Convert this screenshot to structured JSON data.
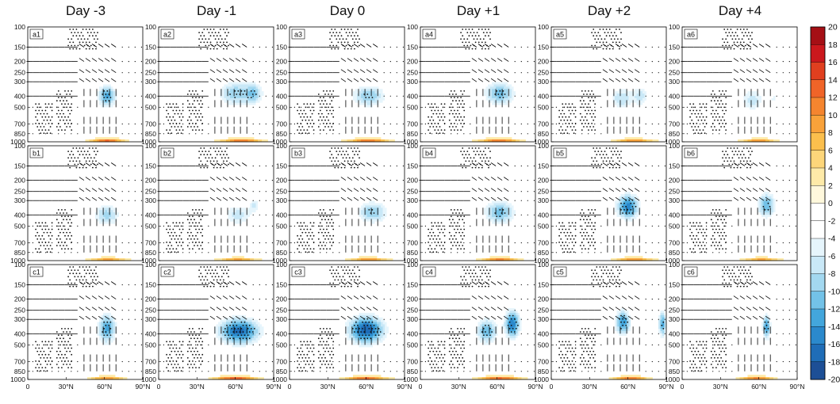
{
  "chart_data": {
    "type": "heatmap",
    "layout": "3 rows x 6 columns of latitude-pressure cross-sections with wind vectors and stippling",
    "column_titles": [
      "Day -3",
      "Day -1",
      "Day 0",
      "Day +1",
      "Day +2",
      "Day +4"
    ],
    "row_keys": [
      "a",
      "b",
      "c"
    ],
    "panel_labels": [
      [
        "a1",
        "a2",
        "a3",
        "a4",
        "a5",
        "a6"
      ],
      [
        "b1",
        "b2",
        "b3",
        "b4",
        "b5",
        "b6"
      ],
      [
        "c1",
        "c2",
        "c3",
        "c4",
        "c5",
        "c6"
      ]
    ],
    "x_axis": {
      "ticks": [
        0,
        30,
        60,
        90
      ],
      "tick_labels": [
        "0",
        "30°N",
        "60°N",
        "90°N"
      ],
      "xlim": [
        0,
        90
      ]
    },
    "y_axis": {
      "ticks": [
        100,
        150,
        200,
        250,
        300,
        400,
        500,
        700,
        850,
        1000
      ],
      "tick_labels": [
        "100",
        "150",
        "200",
        "250",
        "300",
        "400",
        "500",
        "700",
        "850",
        "1000"
      ],
      "ylim": [
        1000,
        100
      ],
      "scale": "log-pressure"
    },
    "colorbar": {
      "levels": [
        20,
        18,
        16,
        14,
        12,
        10,
        8,
        6,
        4,
        2,
        0,
        -2,
        -4,
        -6,
        -8,
        -10,
        -12,
        -14,
        -16,
        -18,
        -20
      ],
      "level_labels": [
        "20",
        "18",
        "16",
        "14",
        "12",
        "10",
        "8",
        "6",
        "4",
        "2",
        "0",
        "-2",
        "-4",
        "-6",
        "-8",
        "-10",
        "-12",
        "-14",
        "-16",
        "-18",
        "-20"
      ],
      "colors": [
        "#a50f15",
        "#cb181d",
        "#e03f1f",
        "#f06428",
        "#f5852f",
        "#f9a23a",
        "#fbbf4d",
        "#fdd67a",
        "#feeaa8",
        "#fff8dc",
        "#ffffff",
        "#ffffff",
        "#e6f5fc",
        "#c9e8f7",
        "#a3d8f0",
        "#73c2e8",
        "#43a6dc",
        "#2b89cc",
        "#1f6db7",
        "#1d4f96",
        "#1a3570"
      ]
    },
    "features": [
      [
        {
          "neg": [
            {
              "lat": 62,
              "p": 400,
              "a": 7,
              "b": 0.22,
              "v": -13
            }
          ],
          "pos": [
            {
              "lat": 62,
              "p": 990,
              "a": 13,
              "b": 0.05,
              "v": 13
            }
          ]
        },
        {
          "neg": [
            {
              "lat": 60,
              "p": 380,
              "a": 13,
              "b": 0.24,
              "v": -10
            },
            {
              "lat": 75,
              "p": 380,
              "a": 7,
              "b": 0.22,
              "v": -8
            }
          ],
          "pos": [
            {
              "lat": 65,
              "p": 990,
              "a": 16,
              "b": 0.05,
              "v": 12
            }
          ]
        },
        {
          "neg": [
            {
              "lat": 62,
              "p": 400,
              "a": 13,
              "b": 0.22,
              "v": -10
            }
          ],
          "pos": [
            {
              "lat": 62,
              "p": 990,
              "a": 16,
              "b": 0.05,
              "v": 12
            }
          ]
        },
        {
          "neg": [
            {
              "lat": 62,
              "p": 380,
              "a": 12,
              "b": 0.24,
              "v": -11
            }
          ],
          "pos": [
            {
              "lat": 62,
              "p": 990,
              "a": 16,
              "b": 0.05,
              "v": 12
            }
          ]
        },
        {
          "neg": [
            {
              "lat": 55,
              "p": 420,
              "a": 9,
              "b": 0.22,
              "v": -8
            },
            {
              "lat": 70,
              "p": 400,
              "a": 6,
              "b": 0.2,
              "v": -7
            }
          ],
          "pos": [
            {
              "lat": 65,
              "p": 990,
              "a": 15,
              "b": 0.05,
              "v": 10
            }
          ]
        },
        {
          "neg": [
            {
              "lat": 55,
              "p": 430,
              "a": 9,
              "b": 0.25,
              "v": -7
            },
            {
              "lat": 72,
              "p": 420,
              "a": 3,
              "b": 0.1,
              "v": -5
            }
          ],
          "pos": [
            {
              "lat": 60,
              "p": 990,
              "a": 13,
              "b": 0.05,
              "v": 10
            }
          ]
        }
      ],
      [
        {
          "neg": [
            {
              "lat": 62,
              "p": 400,
              "a": 10,
              "b": 0.22,
              "v": -9
            }
          ],
          "pos": [
            {
              "lat": 63,
              "p": 990,
              "a": 15,
              "b": 0.05,
              "v": 9
            }
          ]
        },
        {
          "neg": [
            {
              "lat": 62,
              "p": 400,
              "a": 11,
              "b": 0.22,
              "v": -7
            },
            {
              "lat": 75,
              "p": 330,
              "a": 4,
              "b": 0.15,
              "v": -6
            }
          ],
          "pos": [
            {
              "lat": 62,
              "p": 990,
              "a": 15,
              "b": 0.05,
              "v": 9
            }
          ]
        },
        {
          "neg": [
            {
              "lat": 65,
              "p": 380,
              "a": 12,
              "b": 0.22,
              "v": -10
            }
          ],
          "pos": [
            {
              "lat": 62,
              "p": 990,
              "a": 15,
              "b": 0.05,
              "v": 10
            }
          ]
        },
        {
          "neg": [
            {
              "lat": 62,
              "p": 380,
              "a": 12,
              "b": 0.24,
              "v": -11
            }
          ],
          "pos": [
            {
              "lat": 62,
              "p": 990,
              "a": 15,
              "b": 0.05,
              "v": 11
            }
          ]
        },
        {
          "neg": [
            {
              "lat": 60,
              "p": 340,
              "a": 9,
              "b": 0.25,
              "v": -15
            }
          ],
          "pos": [
            {
              "lat": 65,
              "p": 990,
              "a": 15,
              "b": 0.05,
              "v": 10
            }
          ]
        },
        {
          "neg": [
            {
              "lat": 66,
              "p": 330,
              "a": 7,
              "b": 0.25,
              "v": -12
            }
          ],
          "pos": [
            {
              "lat": 62,
              "p": 990,
              "a": 14,
              "b": 0.05,
              "v": 9
            }
          ]
        }
      ],
      [
        {
          "neg": [
            {
              "lat": 62,
              "p": 360,
              "a": 7,
              "b": 0.3,
              "v": -13
            }
          ],
          "pos": [
            {
              "lat": 62,
              "p": 990,
              "a": 13,
              "b": 0.05,
              "v": 10
            }
          ]
        },
        {
          "neg": [
            {
              "lat": 63,
              "p": 380,
              "a": 16,
              "b": 0.26,
              "v": -17
            }
          ],
          "pos": [
            {
              "lat": 60,
              "p": 990,
              "a": 16,
              "b": 0.05,
              "v": 14
            }
          ]
        },
        {
          "neg": [
            {
              "lat": 60,
              "p": 370,
              "a": 14,
              "b": 0.28,
              "v": -18
            }
          ],
          "pos": [
            {
              "lat": 60,
              "p": 990,
              "a": 16,
              "b": 0.05,
              "v": 13
            }
          ]
        },
        {
          "neg": [
            {
              "lat": 52,
              "p": 380,
              "a": 8,
              "b": 0.25,
              "v": -12
            },
            {
              "lat": 72,
              "p": 330,
              "a": 6,
              "b": 0.28,
              "v": -16
            }
          ],
          "pos": [
            {
              "lat": 62,
              "p": 990,
              "a": 16,
              "b": 0.05,
              "v": 13
            }
          ]
        },
        {
          "neg": [
            {
              "lat": 56,
              "p": 320,
              "a": 6,
              "b": 0.25,
              "v": -14
            },
            {
              "lat": 87,
              "p": 330,
              "a": 3,
              "b": 0.25,
              "v": -13
            }
          ],
          "pos": [
            {
              "lat": 62,
              "p": 990,
              "a": 13,
              "b": 0.05,
              "v": 12
            }
          ]
        },
        {
          "neg": [
            {
              "lat": 66,
              "p": 350,
              "a": 3,
              "b": 0.25,
              "v": -14
            }
          ],
          "pos": [
            {
              "lat": 58,
              "p": 990,
              "a": 13,
              "b": 0.05,
              "v": 11
            }
          ]
        }
      ]
    ]
  }
}
